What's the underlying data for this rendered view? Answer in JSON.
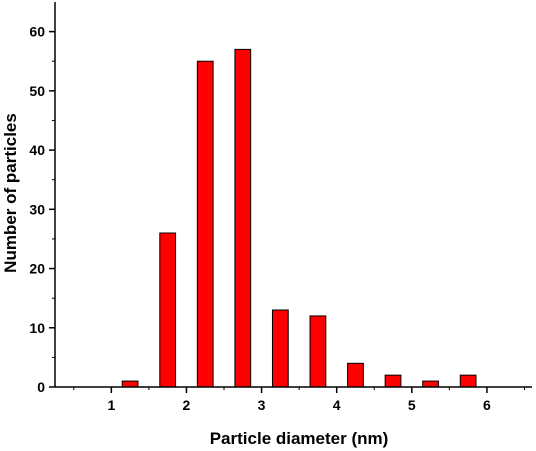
{
  "chart_data": {
    "type": "bar",
    "title": "",
    "xlabel": "Particle diameter (nm)",
    "ylabel": "Number of particles",
    "x": [
      1.25,
      1.75,
      2.25,
      2.75,
      3.25,
      3.75,
      4.25,
      4.75,
      5.25,
      5.75
    ],
    "values": [
      1,
      26,
      55,
      57,
      13,
      12,
      4,
      2,
      1,
      2
    ],
    "bin_width": 0.5,
    "xlim": [
      0.25,
      6.6
    ],
    "ylim": [
      0,
      65
    ],
    "xticks": [
      1,
      2,
      3,
      4,
      5,
      6
    ],
    "yticks": [
      0,
      10,
      20,
      30,
      40,
      50,
      60
    ],
    "grid": false,
    "legend": "none",
    "bar_color": "#ff0000",
    "bar_edge_color": "#000000"
  }
}
